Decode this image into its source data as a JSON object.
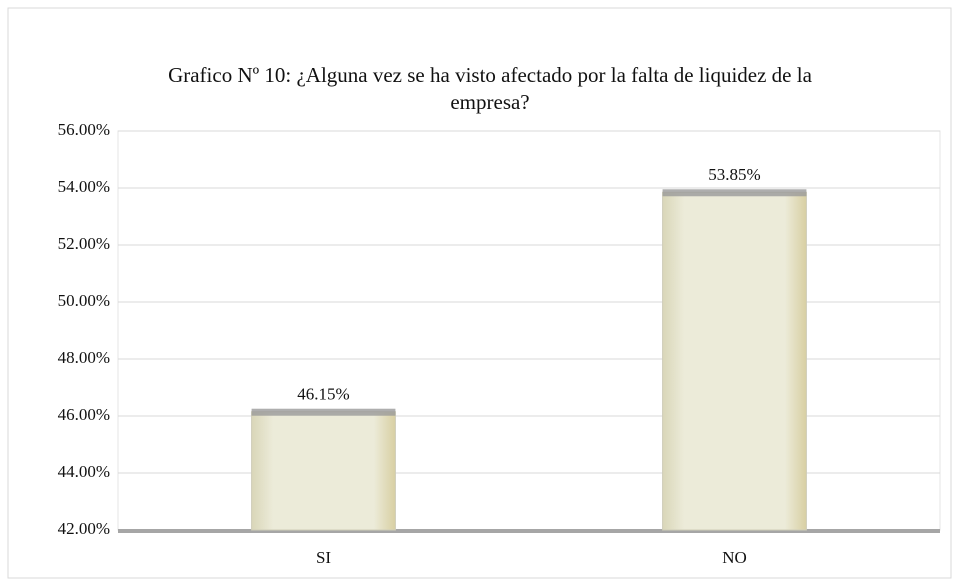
{
  "chart_data": {
    "type": "bar",
    "title": "Grafico Nº 10: ¿Alguna vez se ha visto afectado por la falta de liquidez de la empresa?",
    "categories": [
      "SI",
      "NO"
    ],
    "values": [
      46.15,
      53.85
    ],
    "value_labels": [
      "46.15%",
      "53.85%"
    ],
    "color": "#e9e7d2",
    "ylim": [
      42,
      56
    ],
    "yticks": [
      {
        "value": 42,
        "label": "42.00%"
      },
      {
        "value": 44,
        "label": "44.00%"
      },
      {
        "value": 46,
        "label": "46.00%"
      },
      {
        "value": 48,
        "label": "48.00%"
      },
      {
        "value": 50,
        "label": "50.00%"
      },
      {
        "value": 52,
        "label": "52.00%"
      },
      {
        "value": 54,
        "label": "54.00%"
      },
      {
        "value": 56,
        "label": "56.00%"
      }
    ],
    "grid": true
  }
}
